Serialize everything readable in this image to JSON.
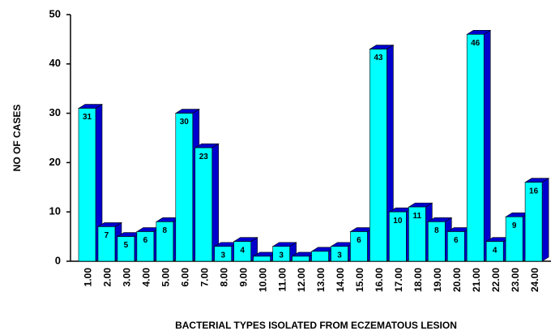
{
  "chart_data": {
    "type": "bar3d",
    "categories": [
      "1.00",
      "2.00",
      "3.00",
      "4.00",
      "5.00",
      "6.00",
      "7.00",
      "8.00",
      "9.00",
      "10.00",
      "11.00",
      "12.00",
      "13.00",
      "14.00",
      "15.00",
      "16.00",
      "17.00",
      "18.00",
      "19.00",
      "20.00",
      "21.00",
      "22.00",
      "23.00",
      "24.00"
    ],
    "values": [
      31,
      7,
      5,
      6,
      8,
      30,
      23,
      3,
      4,
      1,
      3,
      1,
      2,
      3,
      6,
      43,
      10,
      11,
      8,
      6,
      46,
      4,
      9,
      16
    ],
    "value_labels": [
      "31",
      "7",
      "5",
      "6",
      "8",
      "30",
      "23",
      "3",
      "4",
      null,
      "3",
      null,
      null,
      "3",
      "6",
      "43",
      "10",
      "11",
      "8",
      "6",
      "46",
      "4",
      "9",
      "16"
    ],
    "color": "#00ffff",
    "side_color": "#0000cc",
    "xlabel": "BACTERIAL TYPES ISOLATED FROM ECZEMATOUS LESION",
    "ylabel": "NO OF CASES",
    "ylim": [
      0,
      50
    ],
    "yticks": [
      0,
      10,
      20,
      30,
      40,
      50
    ]
  }
}
